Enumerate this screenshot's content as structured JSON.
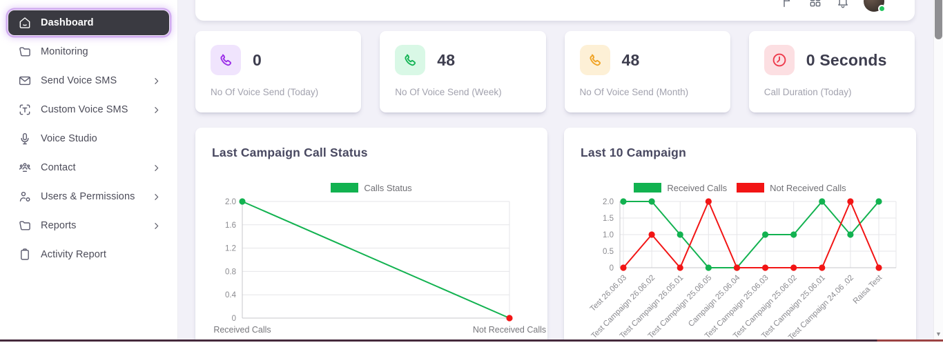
{
  "theme": {
    "accent_purple": "#9b2fe8",
    "green": "#12b250",
    "red": "#f21515",
    "active_item_bg": "#3a3a41",
    "online_dot": "#22c55e"
  },
  "sidebar": {
    "items": [
      {
        "label": "Dashboard",
        "icon": "home-icon",
        "active": true,
        "expandable": false
      },
      {
        "label": "Monitoring",
        "icon": "folder-icon",
        "active": false,
        "expandable": false
      },
      {
        "label": "Send Voice SMS",
        "icon": "envelope-icon",
        "active": false,
        "expandable": true
      },
      {
        "label": "Custom Voice SMS",
        "icon": "text-select-icon",
        "active": false,
        "expandable": true
      },
      {
        "label": "Voice Studio",
        "icon": "microphone-icon",
        "active": false,
        "expandable": false
      },
      {
        "label": "Contact",
        "icon": "contact-group-icon",
        "active": false,
        "expandable": true
      },
      {
        "label": "Users & Permissions",
        "icon": "user-gear-icon",
        "active": false,
        "expandable": true
      },
      {
        "label": "Reports",
        "icon": "folder-icon",
        "active": false,
        "expandable": true
      },
      {
        "label": "Activity Report",
        "icon": "clipboard-icon",
        "active": false,
        "expandable": false
      }
    ]
  },
  "topbar": {
    "icons": [
      {
        "name": "language-icon"
      },
      {
        "name": "apps-icon"
      },
      {
        "name": "bell-icon"
      }
    ],
    "avatar_status": "online"
  },
  "stat_cards": [
    {
      "value": "0",
      "label": "No Of Voice Send (Today)",
      "icon": "phone-icon",
      "accent": "#9b2fe8",
      "accent_bg": "#f0e4fd"
    },
    {
      "value": "48",
      "label": "No Of Voice Send (Week)",
      "icon": "phone-icon",
      "accent": "#15b456",
      "accent_bg": "#d9f8e6"
    },
    {
      "value": "48",
      "label": "No Of Voice Send (Month)",
      "icon": "phone-icon",
      "accent": "#f0a325",
      "accent_bg": "#fdf0d6"
    },
    {
      "value": "0 Seconds",
      "label": "Call Duration (Today)",
      "icon": "clock-icon",
      "accent": "#ee3b4c",
      "accent_bg": "#fcdfe2"
    }
  ],
  "chart_data": [
    {
      "type": "line",
      "title": "Last Campaign Call Status",
      "categories": [
        "Received Calls",
        "Not Received Calls"
      ],
      "series": [
        {
          "name": "Calls Status",
          "color": "#12b250",
          "values": [
            2,
            0
          ],
          "point_colors": [
            "#12b250",
            "#f21515"
          ]
        }
      ],
      "yticks": [
        {
          "label": "2.0",
          "value": 2.0
        },
        {
          "label": "1.6",
          "value": 1.6
        },
        {
          "label": "1.2",
          "value": 1.2
        },
        {
          "label": "0.8",
          "value": 0.8
        },
        {
          "label": "0.4",
          "value": 0.4
        },
        {
          "label": "0",
          "value": 0
        }
      ],
      "ylim": [
        0,
        2
      ],
      "grid": true,
      "legend_position": "top",
      "x_label_style": "horizontal"
    },
    {
      "type": "line",
      "title": "Last 10 Campaign",
      "categories": [
        "Test 26.06.03",
        "Test Campaign 26.06.02",
        "Test Campaign 26.05.01",
        "Test Campaign 25.06.05",
        "Campaign 25.06.04",
        "Test Campaign 25.06.03",
        "Test Campaign 25.06.02",
        "Test Campaign 25.06.01",
        "Test Campaign 24.06 .02",
        "Raisa Test"
      ],
      "series": [
        {
          "name": "Received Calls",
          "color": "#12b250",
          "values": [
            2,
            2,
            1,
            0,
            0,
            1,
            1,
            2,
            1,
            2
          ]
        },
        {
          "name": "Not Received Calls",
          "color": "#f21515",
          "values": [
            0,
            1,
            0,
            2,
            0,
            0,
            0,
            0,
            2,
            0
          ]
        }
      ],
      "yticks": [
        {
          "label": "2.0",
          "value": 2.0
        },
        {
          "label": "1.5",
          "value": 1.5
        },
        {
          "label": "1.0",
          "value": 1.0
        },
        {
          "label": "0.5",
          "value": 0.5
        },
        {
          "label": "0",
          "value": 0
        }
      ],
      "ylim": [
        0,
        2
      ],
      "grid": true,
      "legend_position": "top",
      "x_label_style": "rotated-45"
    }
  ]
}
